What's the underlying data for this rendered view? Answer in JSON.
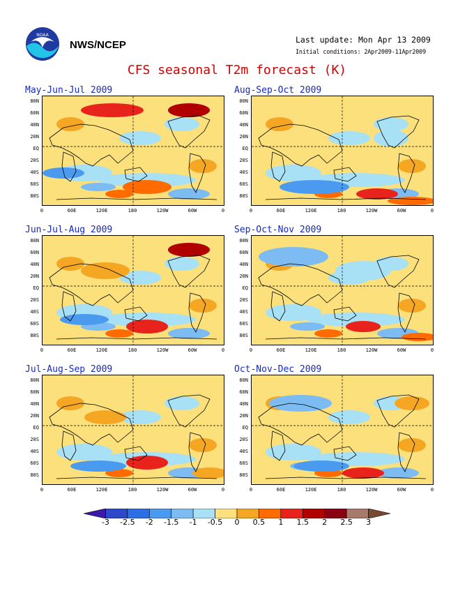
{
  "header": {
    "org": "NWS/NCEP",
    "last_update": "Last update: Mon Apr 13 2009",
    "initial_conditions": "Initial conditions: 2Apr2009-11Apr2009",
    "title": "CFS seasonal T2m forecast (K)"
  },
  "axes": {
    "y_ticks": [
      "80N",
      "60N",
      "40N",
      "20N",
      "EQ",
      "20S",
      "40S",
      "60S",
      "80S"
    ],
    "x_ticks": [
      "0",
      "60E",
      "120E",
      "180",
      "120W",
      "60W",
      "0"
    ]
  },
  "panels": [
    {
      "title": "May-Jun-Jul 2009"
    },
    {
      "title": "Aug-Sep-Oct 2009"
    },
    {
      "title": "Jun-Jul-Aug 2009"
    },
    {
      "title": "Sep-Oct-Nov 2009"
    },
    {
      "title": "Jul-Aug-Sep 2009"
    },
    {
      "title": "Oct-Nov-Dec 2009"
    }
  ],
  "colorbar": {
    "labels": [
      "-3",
      "-2.5",
      "-2",
      "-1.5",
      "-1",
      "-0.5",
      "0",
      "0.5",
      "1",
      "1.5",
      "2",
      "2.5",
      "3"
    ],
    "colors": [
      "#3a1aa8",
      "#2d48c8",
      "#2d6ee6",
      "#4a9bf0",
      "#7cbcf2",
      "#a8e0f6",
      "#fbe07c",
      "#f5a623",
      "#ff6b00",
      "#e8231b",
      "#b00000",
      "#8c0014",
      "#a87a6a",
      "#7a4a30"
    ]
  }
}
